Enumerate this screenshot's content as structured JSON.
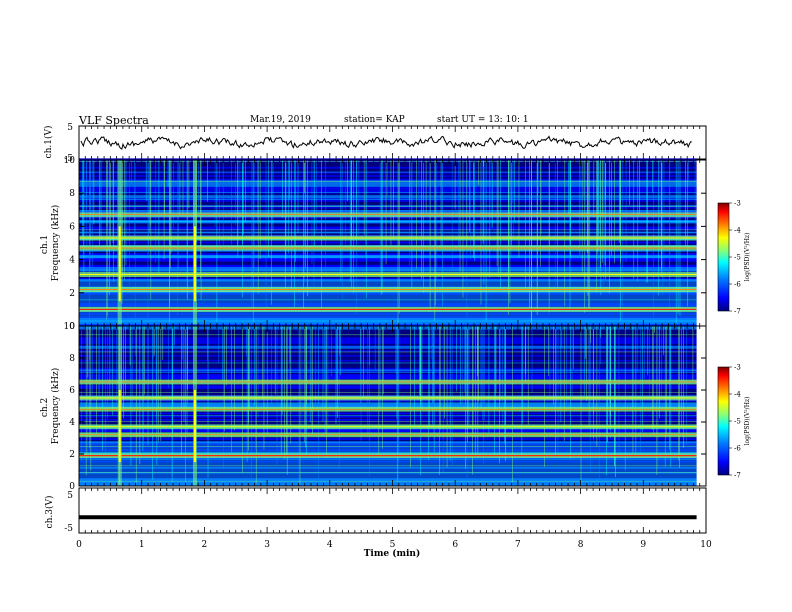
{
  "header": {
    "title": "VLF Spectra",
    "date": "Mar.19, 2019",
    "station": "station= KAP",
    "start": "start  UT =   13: 10: 1"
  },
  "chart_data": [
    {
      "type": "line",
      "panel": "ch1-waveform",
      "ylabel": "ch.1(V)",
      "ylim": [
        -5,
        5
      ],
      "yticks": [
        "5",
        "-5"
      ],
      "xlim": [
        0,
        10
      ],
      "color": "#000000"
    },
    {
      "type": "heatmap",
      "panel": "ch1-spectrogram",
      "ylabel": "ch.1\nFrequency (kHz)",
      "ylim": [
        0,
        10
      ],
      "yticks": [
        "0",
        "2",
        "4",
        "6",
        "8",
        "10"
      ],
      "xlim": [
        0,
        10
      ],
      "colorbar": {
        "min": -7,
        "max": -3,
        "ticks": [
          "-3",
          "-4",
          "-5",
          "-6",
          "-7"
        ],
        "label": "log(PSD)(V²/Hz)"
      },
      "strong_bands_khz": [
        1.0,
        2.2,
        3.1,
        4.7,
        5.3,
        6.7
      ],
      "broadband_events_min": [
        0.65,
        1.85
      ]
    },
    {
      "type": "heatmap",
      "panel": "ch2-spectrogram",
      "ylabel": "ch.2\nFrequency (kHz)",
      "ylim": [
        0,
        10
      ],
      "yticks": [
        "0",
        "2",
        "4",
        "6",
        "8",
        "10"
      ],
      "xlim": [
        0,
        10
      ],
      "colorbar": {
        "min": -7,
        "max": -3,
        "ticks": [
          "-3",
          "-4",
          "-5",
          "-6",
          "-7"
        ],
        "label": "log(PSD)(V²/Hz)"
      },
      "strong_bands_khz": [
        1.9,
        3.2,
        3.7,
        4.8,
        5.5,
        6.5
      ],
      "broadband_events_min": [
        0.65,
        1.85
      ]
    },
    {
      "type": "line",
      "panel": "ch3-waveform",
      "ylabel": "ch.3(V)",
      "ylim": [
        -5,
        5
      ],
      "yticks": [
        "5",
        "-5"
      ],
      "xlim": [
        0,
        10
      ],
      "constant_value": -1.5,
      "color": "#000000"
    }
  ],
  "xaxis": {
    "label": "Time (min)",
    "ticks": [
      "0",
      "1",
      "2",
      "3",
      "4",
      "5",
      "6",
      "7",
      "8",
      "9",
      "10"
    ]
  },
  "colorscale": [
    "#00007f",
    "#0000ff",
    "#007fff",
    "#00ffff",
    "#7fff7f",
    "#ffff00",
    "#ff7f00",
    "#ff0000",
    "#7f0000"
  ]
}
